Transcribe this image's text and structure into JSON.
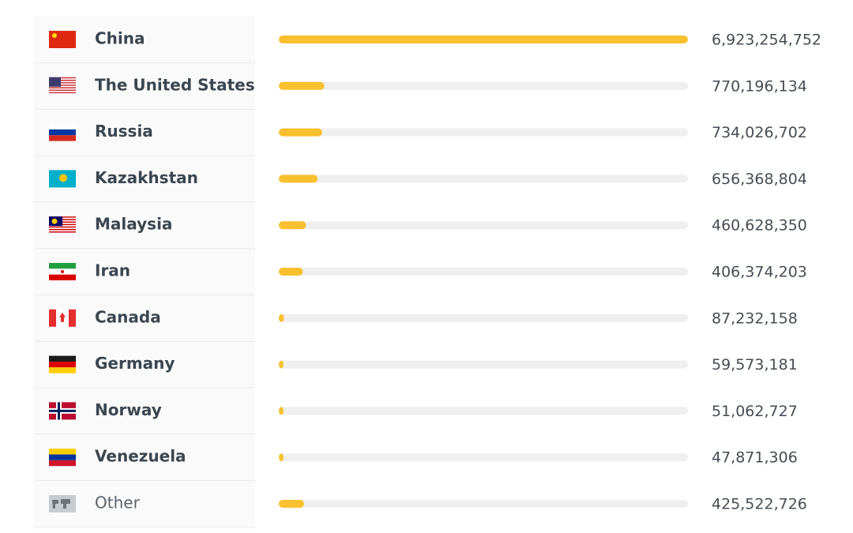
{
  "chart_data": {
    "type": "bar",
    "categories": [
      "China",
      "The United States",
      "Russia",
      "Kazakhstan",
      "Malaysia",
      "Iran",
      "Canada",
      "Germany",
      "Norway",
      "Venezuela",
      "Other"
    ],
    "values": [
      6923254752,
      770196134,
      734026702,
      656368804,
      460628350,
      406374203,
      87232158,
      59573181,
      51062727,
      47871306,
      425522726
    ],
    "value_labels": [
      "6,923,254,752",
      "770,196,134",
      "734,026,702",
      "656,368,804",
      "460,628,350",
      "406,374,203",
      "87,232,158",
      "59,573,181",
      "51,062,727",
      "47,871,306",
      "425,522,726"
    ],
    "color": "#f9c02f"
  }
}
